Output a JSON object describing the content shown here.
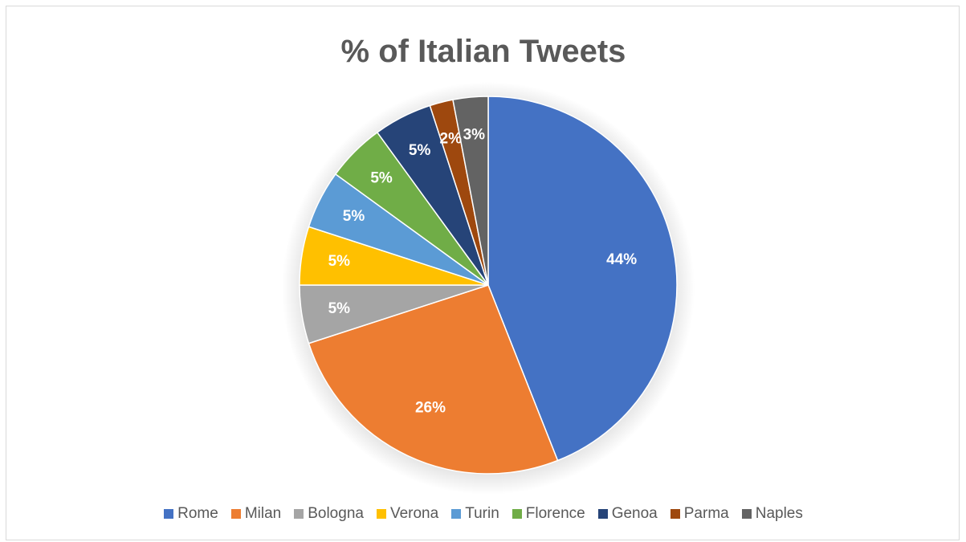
{
  "chart_data": {
    "type": "pie",
    "title": "% of Italian Tweets",
    "categories": [
      "Rome",
      "Milan",
      "Bologna",
      "Verona",
      "Turin",
      "Florence",
      "Genoa",
      "Parma",
      "Naples"
    ],
    "values": [
      44,
      26,
      5,
      5,
      5,
      5,
      5,
      2,
      3
    ],
    "data_labels": [
      "44%",
      "26%",
      "5%",
      "5%",
      "5%",
      "5%",
      "5%",
      "2%",
      "3%"
    ],
    "colors": [
      "#4472c4",
      "#ed7d31",
      "#a5a5a5",
      "#ffc000",
      "#5b9bd5",
      "#70ad47",
      "#264478",
      "#9e480e",
      "#636363"
    ],
    "legend_position": "bottom"
  }
}
